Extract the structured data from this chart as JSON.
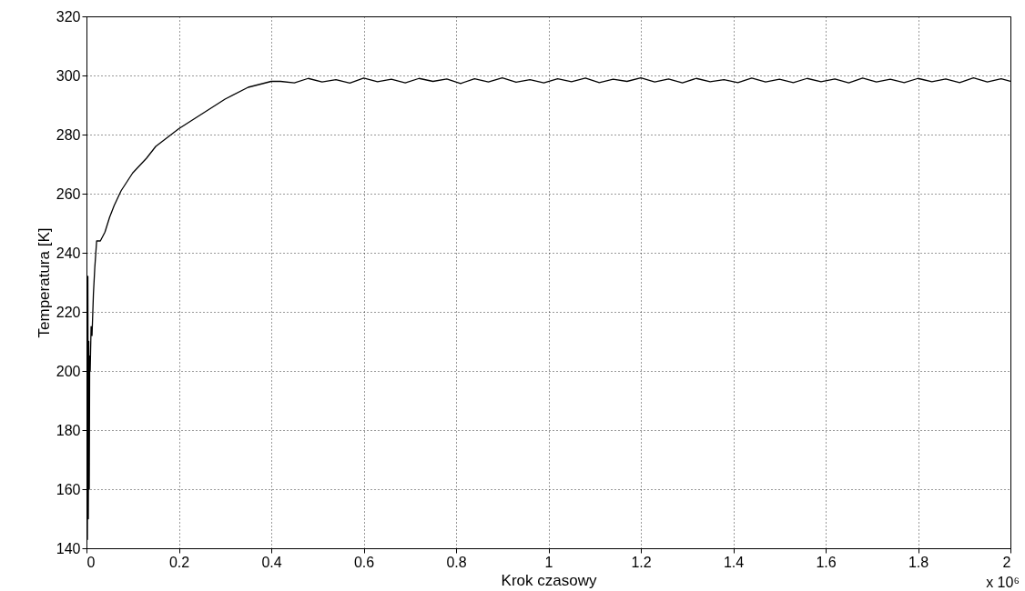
{
  "chart_data": {
    "type": "line",
    "xlabel": "Krok czasowy",
    "ylabel": "Temperatura [K]",
    "annotations": [
      "x 10⁶"
    ],
    "xlim": [
      0,
      2
    ],
    "xticks": [
      0,
      0.2,
      0.4,
      0.6,
      0.8,
      1,
      1.2,
      1.4,
      1.6,
      1.8,
      2
    ],
    "ylim": [
      140,
      320
    ],
    "yticks": [
      140,
      160,
      180,
      200,
      220,
      240,
      260,
      280,
      300,
      320
    ],
    "grid": true,
    "line_style": "solid",
    "marker": "none",
    "series": [
      {
        "color": "#000000",
        "x": [
          0,
          0.001,
          0.002,
          0.003,
          0.004,
          0.005,
          0.006,
          0.007,
          0.008,
          0.01,
          0.012,
          0.015,
          0.018,
          0.022,
          0.03,
          0.04,
          0.05,
          0.06,
          0.075,
          0.1,
          0.13,
          0.15,
          0.2,
          0.25,
          0.3,
          0.35,
          0.4,
          0.42,
          0.45,
          0.48,
          0.51,
          0.54,
          0.57,
          0.6,
          0.63,
          0.66,
          0.69,
          0.72,
          0.75,
          0.78,
          0.81,
          0.84,
          0.87,
          0.9,
          0.93,
          0.96,
          0.99,
          1.02,
          1.05,
          1.08,
          1.11,
          1.14,
          1.17,
          1.2,
          1.23,
          1.26,
          1.29,
          1.32,
          1.35,
          1.38,
          1.41,
          1.44,
          1.47,
          1.5,
          1.53,
          1.56,
          1.59,
          1.62,
          1.65,
          1.68,
          1.71,
          1.74,
          1.77,
          1.8,
          1.83,
          1.86,
          1.89,
          1.92,
          1.95,
          1.98,
          2
        ],
        "values": [
          145,
          230,
          143,
          232,
          150,
          210,
          160,
          205,
          200,
          215,
          212,
          226,
          235,
          244,
          244,
          247,
          252,
          256,
          261,
          267,
          272,
          276,
          282,
          287,
          292,
          296,
          298,
          298,
          297.5,
          299,
          297.8,
          298.6,
          297.4,
          299.1,
          297.9,
          298.7,
          297.5,
          299,
          298,
          298.8,
          297.3,
          298.9,
          297.8,
          299.2,
          297.7,
          298.6,
          297.5,
          298.9,
          297.9,
          299.1,
          297.6,
          298.7,
          298,
          299.2,
          297.8,
          298.8,
          297.5,
          299,
          297.9,
          298.6,
          297.6,
          299.1,
          297.8,
          298.7,
          297.6,
          299,
          297.9,
          298.8,
          297.5,
          299.1,
          297.8,
          298.7,
          297.6,
          299,
          297.9,
          298.8,
          297.6,
          299.2,
          297.8,
          298.9,
          298
        ]
      }
    ]
  }
}
